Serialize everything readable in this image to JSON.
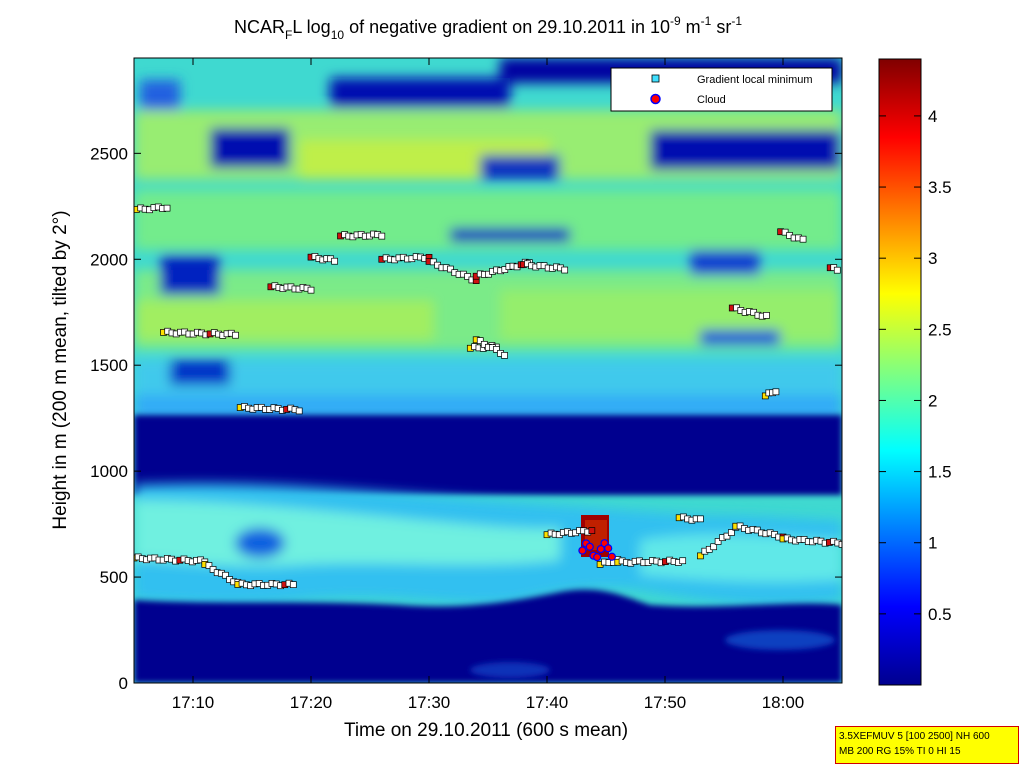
{
  "chart_data": {
    "type": "heatmap",
    "title": {
      "prefix": "NCAR",
      "prefix_sub": "F",
      "middle": "L log",
      "log_sub": "10",
      "text": " of negative gradient on 29.10.2011 in 10",
      "exp1": "-9",
      "unit1": " m",
      "exp2": "-1",
      "unit2": " sr",
      "exp3": "-1"
    },
    "xlabel": "Time on 29.10.2011 (600 s mean)",
    "ylabel": "Height in m (200 m mean, tilted by 2°)",
    "xlim_minutes": [
      1025,
      1085
    ],
    "ylim": [
      0,
      2950
    ],
    "xticks": [
      {
        "label": "17:10",
        "minutes": 1030
      },
      {
        "label": "17:20",
        "minutes": 1040
      },
      {
        "label": "17:30",
        "minutes": 1050
      },
      {
        "label": "17:40",
        "minutes": 1060
      },
      {
        "label": "17:50",
        "minutes": 1070
      },
      {
        "label": "18:00",
        "minutes": 1080
      }
    ],
    "yticks": [
      0,
      500,
      1000,
      1500,
      2000,
      2500
    ],
    "colorbar": {
      "range": [
        0,
        4.4
      ],
      "ticks": [
        "0.5",
        "1",
        "1.5",
        "2",
        "2.5",
        "3",
        "3.5",
        "4"
      ],
      "tick_values": [
        0.5,
        1,
        1.5,
        2,
        2.5,
        3,
        3.5,
        4
      ],
      "colormap": "jet"
    },
    "legend": {
      "placement": "top-right",
      "entries": [
        {
          "label": "Gradient local minimum",
          "marker": "square",
          "color": "#40e0ff"
        },
        {
          "label": "Cloud",
          "marker": "circle",
          "color": "#ff0000",
          "edge": "#0000ff"
        }
      ]
    },
    "gradient_local_minimum_traces": [
      {
        "t": [
          1025.2,
          1027.8
        ],
        "h": [
          2235,
          2245
        ],
        "v": 1.8
      },
      {
        "t": [
          1027.5,
          1033.6
        ],
        "h": [
          1655,
          1645
        ],
        "v": 1.8
      },
      {
        "t": [
          1025.0,
          1031.0
        ],
        "h": [
          590,
          575
        ],
        "v": 1.7
      },
      {
        "t": [
          1031.0,
          1033.8
        ],
        "h": [
          560,
          470
        ],
        "v": 1.7
      },
      {
        "t": [
          1033.8,
          1038.5
        ],
        "h": [
          465,
          465
        ],
        "v": 1.6
      },
      {
        "t": [
          1034.0,
          1039.0
        ],
        "h": [
          1300,
          1290
        ],
        "v": 1.7
      },
      {
        "t": [
          1036.6,
          1040.0
        ],
        "h": [
          1870,
          1860
        ],
        "v": 2.3
      },
      {
        "t": [
          1040.0,
          1042.0
        ],
        "h": [
          2010,
          1995
        ],
        "v": 2.0
      },
      {
        "t": [
          1042.5,
          1046.0
        ],
        "h": [
          2110,
          2115
        ],
        "v": 2.0
      },
      {
        "t": [
          1046.0,
          1050.0
        ],
        "h": [
          2000,
          2010
        ],
        "v": 2.0
      },
      {
        "t": [
          1050.0,
          1054.0
        ],
        "h": [
          1990,
          1900
        ],
        "v": 2.0
      },
      {
        "t": [
          1054.0,
          1058.5
        ],
        "h": [
          1920,
          1985
        ],
        "v": 2.1
      },
      {
        "t": [
          1058.0,
          1061.5
        ],
        "h": [
          1975,
          1955
        ],
        "v": 2.3
      },
      {
        "t": [
          1060.0,
          1063.8
        ],
        "h": [
          700,
          720
        ],
        "v": 1.8
      },
      {
        "t": [
          1064.5,
          1066.0
        ],
        "h": [
          560,
          580
        ],
        "v": 1.8
      },
      {
        "t": [
          1066.0,
          1071.5
        ],
        "h": [
          570,
          575
        ],
        "v": 1.8
      },
      {
        "t": [
          1071.2,
          1073.0
        ],
        "h": [
          780,
          770
        ],
        "v": 1.7
      },
      {
        "t": [
          1073.0,
          1076.0
        ],
        "h": [
          600,
          730
        ],
        "v": 1.7
      },
      {
        "t": [
          1076.0,
          1080.0
        ],
        "h": [
          740,
          690
        ],
        "v": 1.7
      },
      {
        "t": [
          1080.0,
          1085.0
        ],
        "h": [
          680,
          660
        ],
        "v": 1.7
      },
      {
        "t": [
          1075.7,
          1078.6
        ],
        "h": [
          1770,
          1730
        ],
        "v": 2.3
      },
      {
        "t": [
          1079.8,
          1081.7
        ],
        "h": [
          2130,
          2090
        ],
        "v": 2.0
      },
      {
        "t": [
          1084.0,
          1084.6
        ],
        "h": [
          1960,
          1950
        ],
        "v": 2.0
      },
      {
        "t": [
          1053.5,
          1055.7
        ],
        "h": [
          1580,
          1590
        ],
        "v": 1.9
      },
      {
        "t": [
          1054.0,
          1056.4
        ],
        "h": [
          1620,
          1550
        ],
        "v": 1.9
      },
      {
        "t": [
          1078.5,
          1079.4
        ],
        "h": [
          1355,
          1380
        ],
        "v": 1.9
      }
    ],
    "cloud": {
      "t_range": [
        1063.0,
        1065.5
      ],
      "h_range": [
        590,
        660
      ]
    }
  },
  "info_box": {
    "line1": "3.5XEFMUV 5 [100 2500] NH 600",
    "line2": "MB 200 RG 15% TI 0 HI 15"
  },
  "colors": {
    "background_low": "#00008f",
    "accent_red": "#800000"
  }
}
